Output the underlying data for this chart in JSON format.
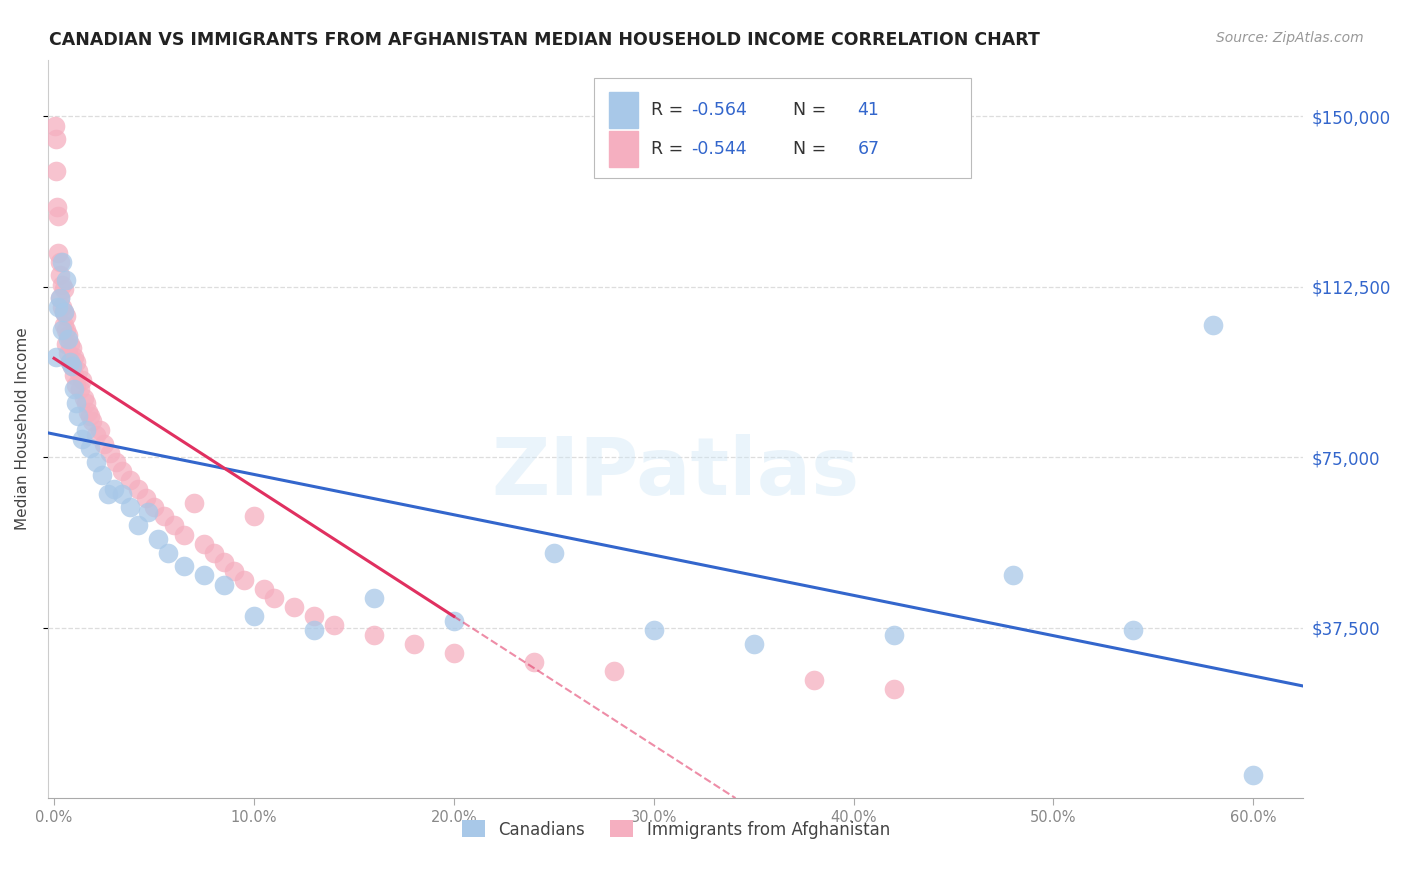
{
  "title": "CANADIAN VS IMMIGRANTS FROM AFGHANISTAN MEDIAN HOUSEHOLD INCOME CORRELATION CHART",
  "source": "Source: ZipAtlas.com",
  "ylabel": "Median Household Income",
  "ytick_labels": [
    "$37,500",
    "$75,000",
    "$112,500",
    "$150,000"
  ],
  "ytick_values": [
    37500,
    75000,
    112500,
    150000
  ],
  "ymin": 0,
  "ymax": 162500,
  "xmin": -0.003,
  "xmax": 0.625,
  "xtick_values": [
    0.0,
    0.1,
    0.2,
    0.3,
    0.4,
    0.5,
    0.6
  ],
  "xtick_labels": [
    "0.0%",
    "10.0%",
    "20.0%",
    "30.0%",
    "40.0%",
    "50.0%",
    "60.0%"
  ],
  "legend_r_canadian": "R = -0.564",
  "legend_n_canadian": "N = 41",
  "legend_r_afghan": "R = -0.544",
  "legend_n_afghan": "N = 67",
  "canadian_color": "#a8c8e8",
  "afghan_color": "#f5afc0",
  "canadian_line_color": "#3366cc",
  "afghan_line_color": "#e03060",
  "text_color": "#444444",
  "tick_color": "#888888",
  "grid_color": "#dddddd",
  "watermark": "ZIPatlas",
  "watermark_zip_color": "#c5ddf0",
  "watermark_atlas_color": "#c5ddf0",
  "canadians_label": "Canadians",
  "afghan_label": "Immigrants from Afghanistan",
  "canadian_points_x": [
    0.001,
    0.002,
    0.003,
    0.004,
    0.004,
    0.005,
    0.006,
    0.007,
    0.008,
    0.009,
    0.01,
    0.011,
    0.012,
    0.014,
    0.016,
    0.018,
    0.021,
    0.024,
    0.027,
    0.03,
    0.034,
    0.038,
    0.042,
    0.047,
    0.052,
    0.057,
    0.065,
    0.075,
    0.085,
    0.1,
    0.13,
    0.16,
    0.2,
    0.25,
    0.3,
    0.35,
    0.42,
    0.48,
    0.54,
    0.58,
    0.6
  ],
  "canadian_points_y": [
    97000,
    108000,
    110000,
    118000,
    103000,
    107000,
    114000,
    101000,
    96000,
    95000,
    90000,
    87000,
    84000,
    79000,
    81000,
    77000,
    74000,
    71000,
    67000,
    68000,
    67000,
    64000,
    60000,
    63000,
    57000,
    54000,
    51000,
    49000,
    47000,
    40000,
    37000,
    44000,
    39000,
    54000,
    37000,
    34000,
    36000,
    49000,
    37000,
    104000,
    5000
  ],
  "afghan_points_x": [
    0.0005,
    0.001,
    0.001,
    0.0015,
    0.002,
    0.002,
    0.003,
    0.003,
    0.003,
    0.004,
    0.004,
    0.005,
    0.005,
    0.005,
    0.006,
    0.006,
    0.006,
    0.007,
    0.007,
    0.008,
    0.008,
    0.009,
    0.009,
    0.01,
    0.01,
    0.011,
    0.011,
    0.012,
    0.013,
    0.014,
    0.015,
    0.016,
    0.017,
    0.018,
    0.019,
    0.021,
    0.023,
    0.025,
    0.028,
    0.031,
    0.034,
    0.038,
    0.042,
    0.046,
    0.05,
    0.055,
    0.06,
    0.065,
    0.07,
    0.075,
    0.08,
    0.085,
    0.09,
    0.095,
    0.1,
    0.105,
    0.11,
    0.12,
    0.13,
    0.14,
    0.16,
    0.18,
    0.2,
    0.24,
    0.28,
    0.38,
    0.42
  ],
  "afghan_points_y": [
    148000,
    145000,
    138000,
    130000,
    128000,
    120000,
    118000,
    115000,
    110000,
    113000,
    108000,
    112000,
    107000,
    104000,
    106000,
    103000,
    100000,
    102000,
    98000,
    100000,
    96000,
    99000,
    95000,
    97000,
    93000,
    96000,
    91000,
    94000,
    90000,
    92000,
    88000,
    87000,
    85000,
    84000,
    83000,
    80000,
    81000,
    78000,
    76000,
    74000,
    72000,
    70000,
    68000,
    66000,
    64000,
    62000,
    60000,
    58000,
    65000,
    56000,
    54000,
    52000,
    50000,
    48000,
    62000,
    46000,
    44000,
    42000,
    40000,
    38000,
    36000,
    34000,
    32000,
    30000,
    28000,
    26000,
    24000
  ]
}
